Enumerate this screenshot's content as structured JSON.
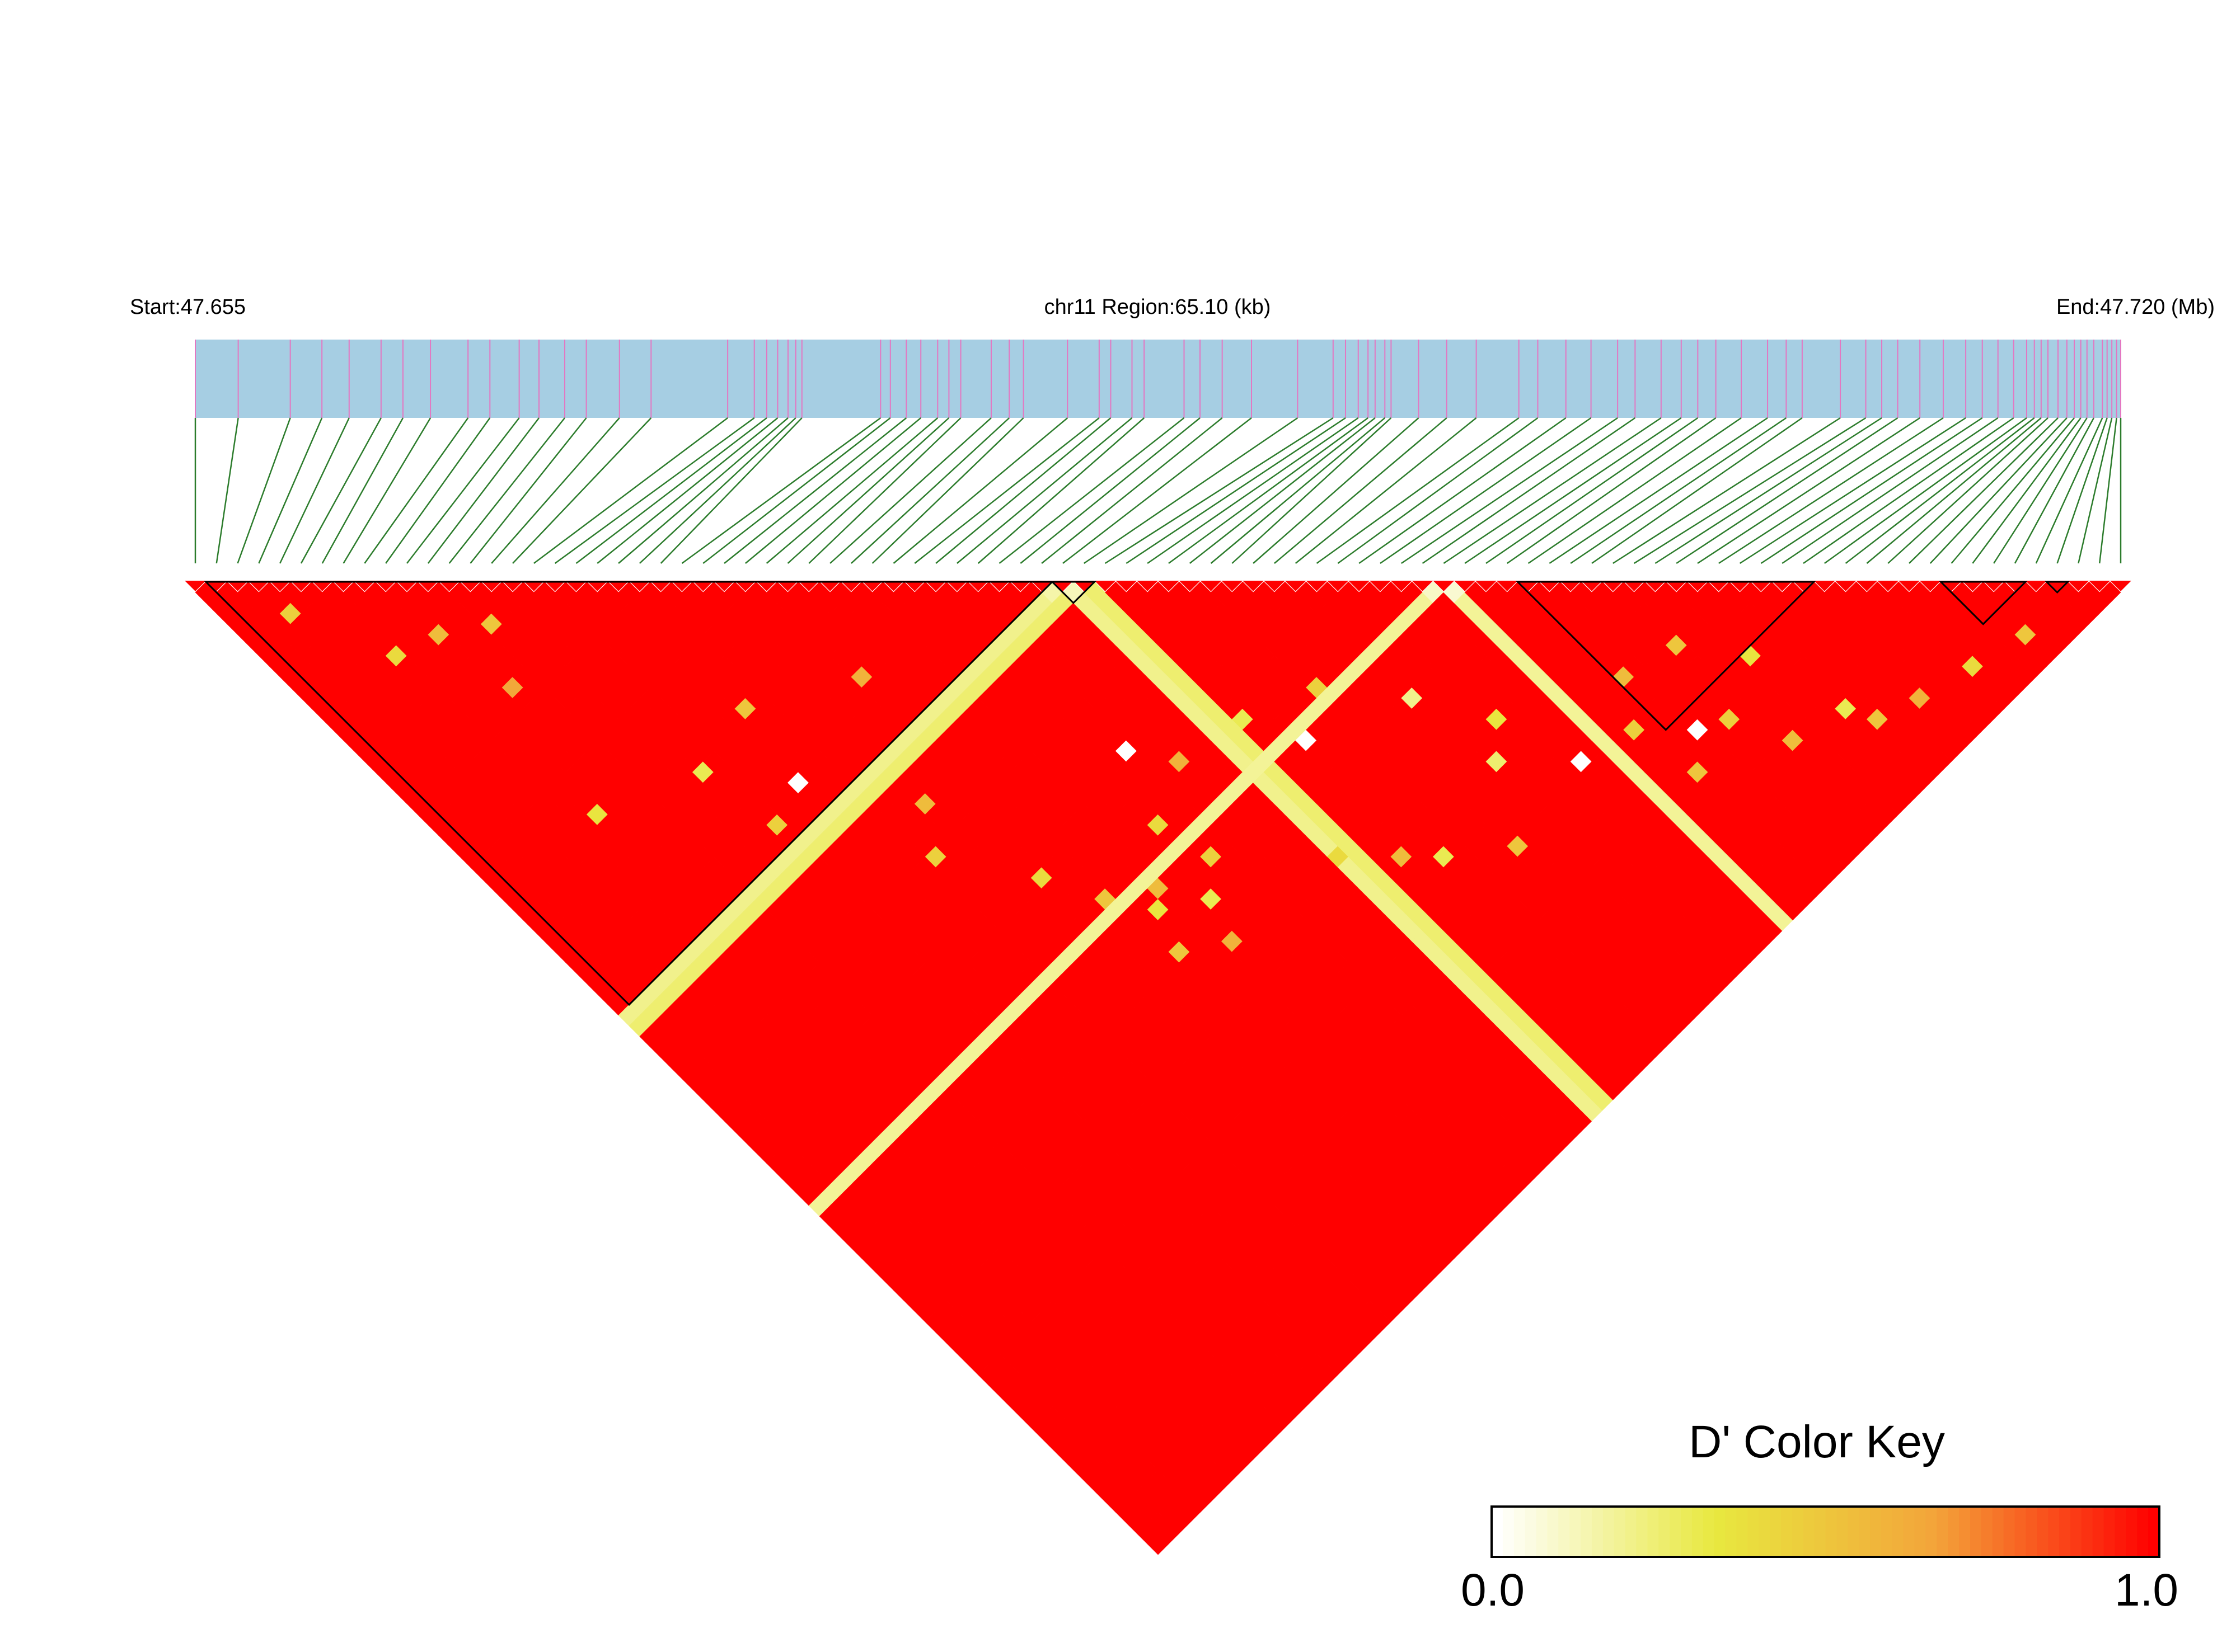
{
  "chart_data": {
    "type": "heatmap",
    "start_label": "Start:47.655",
    "region_label": "chr11 Region:65.10 (kb)",
    "end_label": "End:47.720 (Mb)",
    "start_mb": 47.655,
    "end_mb": 47.72,
    "region_kb": 65.1,
    "snp_count": 92,
    "snp_positions_kb": [
      0.0,
      1.45,
      3.21,
      4.28,
      5.2,
      6.28,
      7.02,
      7.95,
      9.22,
      9.96,
      10.95,
      11.62,
      12.49,
      13.22,
      14.34,
      15.41,
      18.0,
      18.9,
      19.32,
      19.69,
      20.04,
      20.3,
      20.51,
      23.17,
      23.5,
      24.04,
      24.53,
      25.1,
      25.48,
      25.88,
      26.91,
      27.52,
      28.0,
      29.49,
      30.56,
      30.95,
      31.67,
      32.08,
      33.43,
      33.97,
      34.72,
      35.71,
      37.27,
      38.47,
      38.89,
      39.32,
      39.65,
      39.89,
      40.22,
      40.43,
      41.36,
      42.31,
      43.31,
      44.75,
      45.39,
      46.34,
      47.19,
      48.09,
      48.68,
      49.56,
      50.24,
      50.8,
      51.41,
      52.27,
      53.16,
      53.79,
      54.33,
      55.62,
      56.48,
      57.02,
      57.56,
      58.31,
      59.1,
      59.86,
      60.42,
      60.95,
      61.48,
      61.92,
      62.18,
      62.41,
      62.64,
      62.98,
      63.28,
      63.53,
      63.75,
      63.96,
      64.19,
      64.48,
      64.64,
      64.8,
      64.96,
      65.1
    ],
    "ld_metric": "D'",
    "matrix_background_value": 1.0,
    "off_blocks": [
      {
        "i": 40,
        "j": 41,
        "value": 0.15
      },
      {
        "i": 41,
        "j": 42,
        "value": 0.12
      },
      {
        "i": 58,
        "j": 59,
        "value": 0.1
      },
      {
        "i": 59,
        "j": 60,
        "value": 0.08
      }
    ],
    "off_columns": [
      {
        "snp": 41,
        "value": 0.2
      },
      {
        "snp": 42,
        "value": 0.25
      },
      {
        "snp": 59,
        "value": 0.18
      }
    ],
    "low_cells": [
      {
        "i": 3,
        "j": 6,
        "value": 0.45
      },
      {
        "i": 9,
        "j": 14,
        "value": 0.55
      },
      {
        "i": 12,
        "j": 16,
        "value": 0.5
      },
      {
        "i": 6,
        "j": 13,
        "value": 0.4
      },
      {
        "i": 10,
        "j": 20,
        "value": 0.65
      },
      {
        "i": 20,
        "j": 32,
        "value": 0.5
      },
      {
        "i": 15,
        "j": 33,
        "value": 0.3
      },
      {
        "i": 8,
        "j": 30,
        "value": 0.35
      },
      {
        "i": 19,
        "j": 38,
        "value": 0.0
      },
      {
        "i": 16,
        "j": 39,
        "value": 0.45
      },
      {
        "i": 27,
        "j": 36,
        "value": 0.6
      },
      {
        "i": 24,
        "j": 45,
        "value": 0.55
      },
      {
        "i": 43,
        "j": 56,
        "value": 0.3
      },
      {
        "i": 45,
        "j": 60,
        "value": 0.0
      },
      {
        "i": 48,
        "j": 58,
        "value": 0.45
      },
      {
        "i": 55,
        "j": 68,
        "value": 0.35
      },
      {
        "i": 52,
        "j": 63,
        "value": 0.2
      },
      {
        "i": 36,
        "j": 52,
        "value": 0.0
      },
      {
        "i": 38,
        "j": 55,
        "value": 0.6
      },
      {
        "i": 41,
        "j": 67,
        "value": 0.4
      },
      {
        "i": 44,
        "j": 70,
        "value": 0.55
      },
      {
        "i": 46,
        "j": 72,
        "value": 0.3
      },
      {
        "i": 50,
        "j": 75,
        "value": 0.5
      },
      {
        "i": 35,
        "j": 61,
        "value": 0.45
      },
      {
        "i": 28,
        "j": 58,
        "value": 0.5
      },
      {
        "i": 30,
        "j": 61,
        "value": 0.35
      },
      {
        "i": 32,
        "j": 66,
        "value": 0.6
      },
      {
        "i": 34,
        "j": 57,
        "value": 0.4
      },
      {
        "i": 53,
        "j": 70,
        "value": 0.25
      },
      {
        "i": 57,
        "j": 74,
        "value": 0.0
      },
      {
        "i": 61,
        "j": 75,
        "value": 0.45
      },
      {
        "i": 62,
        "j": 80,
        "value": 0.5
      },
      {
        "i": 64,
        "j": 78,
        "value": 0.0
      },
      {
        "i": 66,
        "j": 79,
        "value": 0.45
      },
      {
        "i": 68,
        "j": 83,
        "value": 0.55
      },
      {
        "i": 72,
        "j": 84,
        "value": 0.3
      },
      {
        "i": 73,
        "j": 86,
        "value": 0.5
      },
      {
        "i": 76,
        "j": 87,
        "value": 0.6
      },
      {
        "i": 80,
        "j": 88,
        "value": 0.4
      },
      {
        "i": 84,
        "j": 89,
        "value": 0.5
      },
      {
        "i": 70,
        "j": 77,
        "value": 0.35
      },
      {
        "i": 67,
        "j": 73,
        "value": 0.5
      },
      {
        "i": 63,
        "j": 72,
        "value": 0.55
      },
      {
        "i": 22,
        "j": 48,
        "value": 0.45
      },
      {
        "i": 26,
        "j": 54,
        "value": 0.4
      },
      {
        "i": 31,
        "j": 60,
        "value": 0.55
      },
      {
        "i": 33,
        "j": 63,
        "value": 0.3
      },
      {
        "i": 29,
        "j": 64,
        "value": 0.5
      }
    ],
    "haplotype_blocks": [
      {
        "first_snp": 1,
        "last_snp": 40
      },
      {
        "first_snp": 41,
        "last_snp": 42
      },
      {
        "first_snp": 63,
        "last_snp": 76
      },
      {
        "first_snp": 83,
        "last_snp": 86
      },
      {
        "first_snp": 88,
        "last_snp": 88
      }
    ],
    "color_key": {
      "title": "D' Color Key",
      "min_label": "0.0",
      "max_label": "1.0",
      "min": 0.0,
      "max": 1.0,
      "colors": [
        "#ffffff",
        "#e8e83f",
        "#f3a43a",
        "#ff0000"
      ]
    },
    "annotation_colors": {
      "track": "#a6cee3",
      "snp_tick": "#e377c2",
      "connector": "#2c7c2c"
    }
  }
}
